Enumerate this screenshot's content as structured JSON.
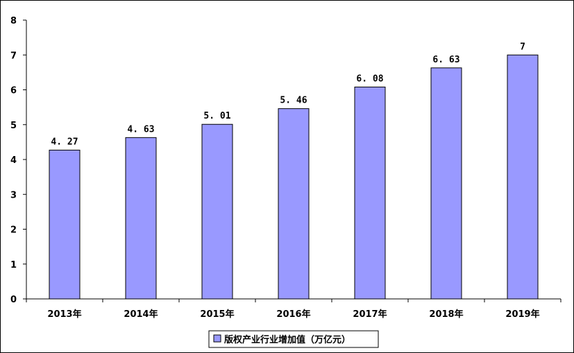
{
  "chart_data": {
    "type": "bar",
    "categories": [
      "2013年",
      "2014年",
      "2015年",
      "2016年",
      "2017年",
      "2018年",
      "2019年"
    ],
    "series": [
      {
        "name": "版权产业行业增加值（万亿元）",
        "values": [
          4.27,
          4.63,
          5.01,
          5.46,
          6.08,
          6.63,
          7
        ]
      }
    ],
    "value_labels": [
      "4. 27",
      "4. 63",
      "5. 01",
      "5. 46",
      "6. 08",
      "6. 63",
      "7"
    ],
    "y_ticks": [
      "0",
      "1",
      "2",
      "3",
      "4",
      "5",
      "6",
      "7",
      "8"
    ],
    "ylim": [
      0,
      8
    ],
    "grid": false,
    "legend_position": "bottom",
    "title": "",
    "xlabel": "",
    "ylabel": "",
    "colors": {
      "bar_fill": "#9999ff",
      "bar_stroke": "#000000"
    }
  }
}
